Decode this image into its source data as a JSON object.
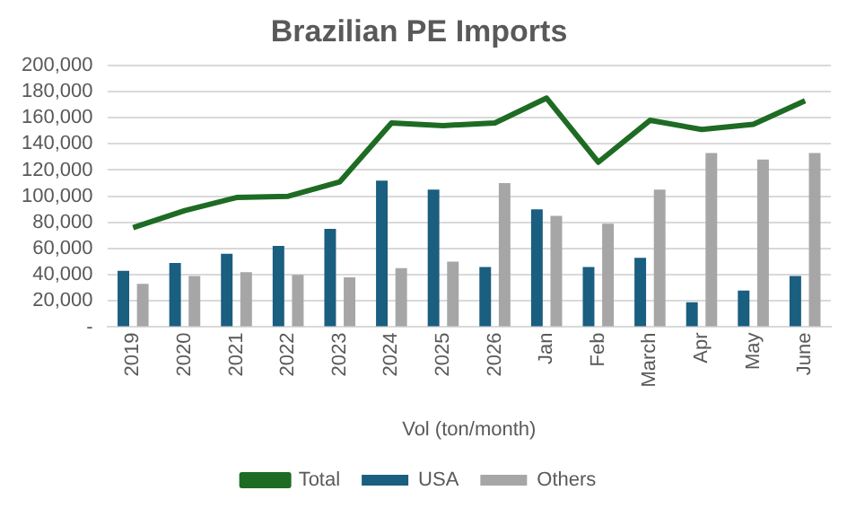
{
  "chart_data": {
    "type": "bar",
    "title": "Brazilian PE Imports",
    "xlabel": "Vol (ton/month)",
    "categories": [
      "2019",
      "2020",
      "2021",
      "2022",
      "2023",
      "2024",
      "2025",
      "2026",
      "Jan",
      "Feb",
      "March",
      "Apr",
      "May",
      "June"
    ],
    "series": [
      {
        "name": "USA",
        "color": "#1a5e80",
        "values": [
          43000,
          49000,
          56000,
          62000,
          75000,
          112000,
          105000,
          46000,
          90000,
          46000,
          53000,
          19000,
          28000,
          39000
        ]
      },
      {
        "name": "Others",
        "color": "#a6a6a6",
        "values": [
          33000,
          39000,
          42000,
          40000,
          38000,
          45000,
          50000,
          110000,
          85000,
          79000,
          105000,
          133000,
          128000,
          133000
        ]
      },
      {
        "name": "Total",
        "type": "line",
        "color": "#1e6b24",
        "values": [
          76000,
          89000,
          99000,
          100000,
          111000,
          156000,
          154000,
          156000,
          175000,
          126000,
          158000,
          151000,
          155000,
          173000
        ]
      }
    ],
    "ylim": [
      0,
      200000
    ],
    "yticks": [
      {
        "value": 0,
        "label": "-"
      },
      {
        "value": 20000,
        "label": "20,000"
      },
      {
        "value": 40000,
        "label": "40,000"
      },
      {
        "value": 60000,
        "label": "60,000"
      },
      {
        "value": 80000,
        "label": "80,000"
      },
      {
        "value": 100000,
        "label": "100,000"
      },
      {
        "value": 120000,
        "label": "120,000"
      },
      {
        "value": 140000,
        "label": "140,000"
      },
      {
        "value": 160000,
        "label": "160,000"
      },
      {
        "value": 180000,
        "label": "180,000"
      },
      {
        "value": 200000,
        "label": "200,000"
      }
    ],
    "grid": "y",
    "legend": "bottom",
    "marker": "none",
    "line_style": "solid"
  }
}
